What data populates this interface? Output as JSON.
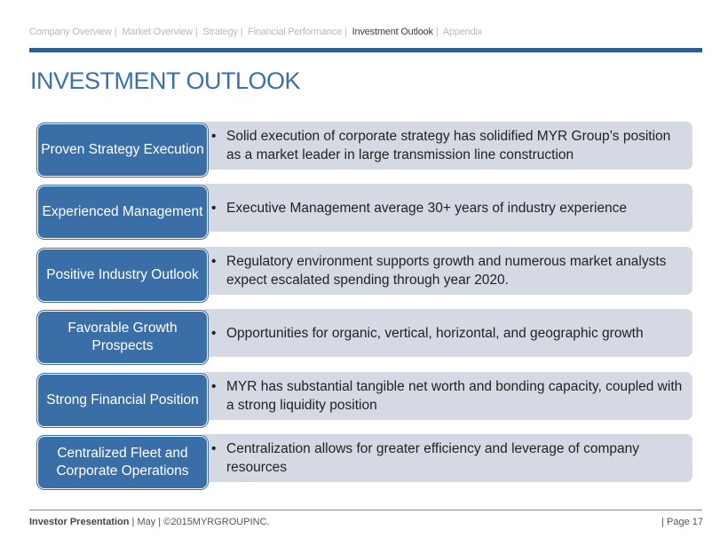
{
  "nav": {
    "items": [
      "Company Overview",
      "Market Overview",
      "Strategy",
      "Financial Performance",
      "Investment Outlook",
      "Appendix"
    ],
    "active": "Investment Outlook"
  },
  "title": "INVESTMENT OUTLOOK",
  "rows": [
    {
      "label": "Proven Strategy Execution",
      "text": "Solid execution of corporate strategy has solidified MYR Group’s position as a market leader in large transmission line construction"
    },
    {
      "label": "Experienced Management",
      "text": "Executive Management average 30+ years of industry experience"
    },
    {
      "label": "Positive Industry Outlook",
      "text": "Regulatory environment supports growth and numerous market analysts expect escalated spending through year 2020."
    },
    {
      "label": "Favorable Growth Prospects",
      "text": "Opportunities for organic, vertical, horizontal, and geographic growth"
    },
    {
      "label": "Strong Financial Position",
      "text": "MYR has substantial tangible net worth and bonding capacity, coupled with a strong liquidity position"
    },
    {
      "label": "Centralized Fleet and Corporate Operations",
      "text": "Centralization allows for greater efficiency and leverage of company resources"
    }
  ],
  "footer": {
    "presentation": "Investor Presentation",
    "month": "May",
    "copyright": "©2015MYRGROUPINC.",
    "page": "Page 17"
  },
  "colors": {
    "brand_blue": "#3a6ea6",
    "title_blue": "#3a70ae",
    "grey_panel": "#d5d9e3"
  }
}
